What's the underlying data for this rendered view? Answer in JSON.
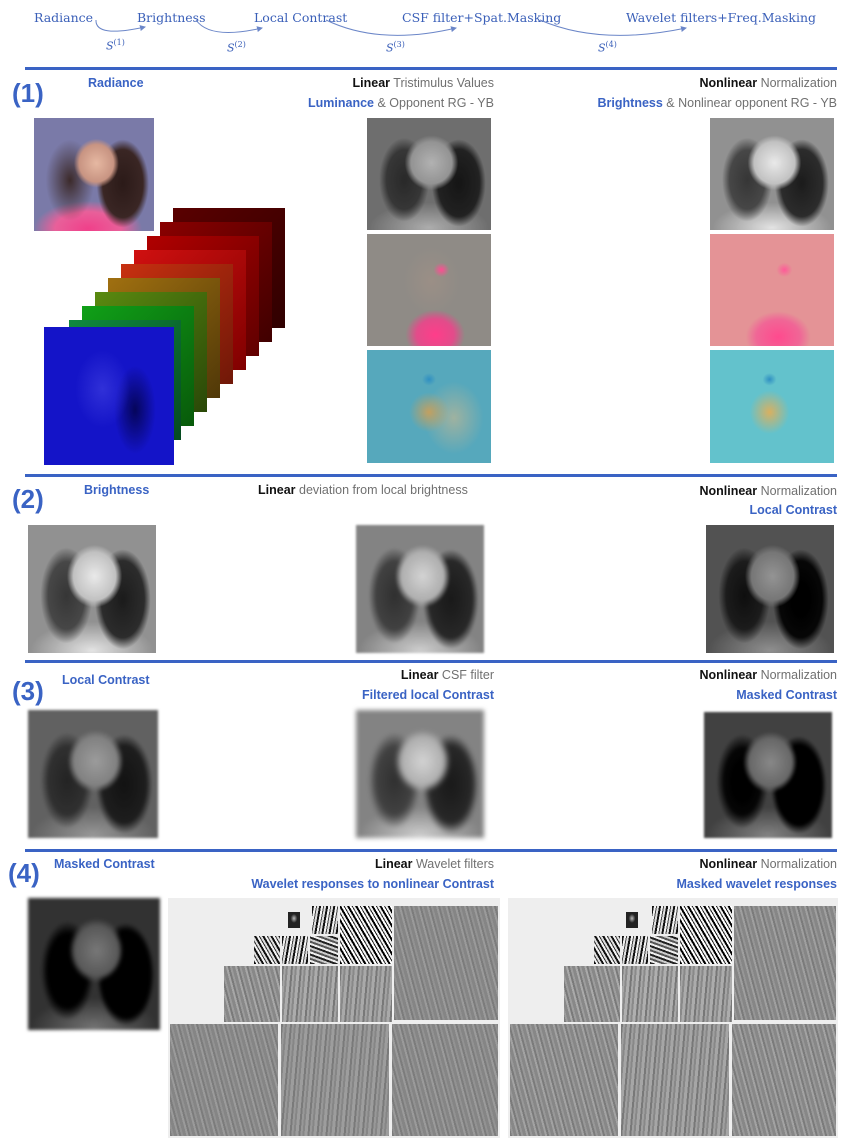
{
  "pipeline": {
    "stages": [
      "Radiance",
      "Brightness",
      "Local Contrast",
      "CSF filter+Spat.Masking",
      "Wavelet filters+Freq.Masking"
    ],
    "transforms": [
      {
        "symbol": "S",
        "index": "(1)"
      },
      {
        "symbol": "S",
        "index": "(2)"
      },
      {
        "symbol": "S",
        "index": "(3)"
      },
      {
        "symbol": "S",
        "index": "(4)"
      }
    ]
  },
  "sections": [
    {
      "number": "(1)",
      "input_label": "Radiance",
      "linear": {
        "bold": "Linear",
        "rest": " Tristimulus Values",
        "second_bold": "Luminance",
        "second_rest": " & Opponent RG - YB"
      },
      "nonlinear": {
        "bold": "Nonlinear",
        "rest": " Normalization",
        "second_bold": "Brightness",
        "second_rest": " & Nonlinear opponent RG - YB"
      }
    },
    {
      "number": "(2)",
      "input_label": "Brightness",
      "linear": {
        "bold": "Linear",
        "rest": " deviation from local brightness"
      },
      "nonlinear": {
        "bold": "Nonlinear",
        "rest": " Normalization",
        "second": "Local Contrast"
      }
    },
    {
      "number": "(3)",
      "input_label": "Local Contrast",
      "linear": {
        "bold": "Linear",
        "rest": " CSF filter",
        "second": "Filtered local Contrast"
      },
      "nonlinear": {
        "bold": "Nonlinear",
        "rest": " Normalization",
        "second": "Masked Contrast"
      }
    },
    {
      "number": "(4)",
      "input_label": "Masked Contrast",
      "linear": {
        "bold": "Linear",
        "rest": " Wavelet filters",
        "second": "Wavelet responses to nonlinear Contrast"
      },
      "nonlinear": {
        "bold": "Nonlinear",
        "rest": " Normalization",
        "second": "Masked wavelet responses"
      }
    }
  ],
  "colors": {
    "accent": "#3a63c4",
    "pipeline_text": "#3a5fb8"
  },
  "spectral_layers": [
    "#0a0acc",
    "#0f3aa0",
    "#107828",
    "#0e8a12",
    "#4a8a0e",
    "#8a7a0a",
    "#b0300a",
    "#c00a0a",
    "#c00000",
    "#b00000",
    "#8a0000",
    "#5a0000"
  ]
}
